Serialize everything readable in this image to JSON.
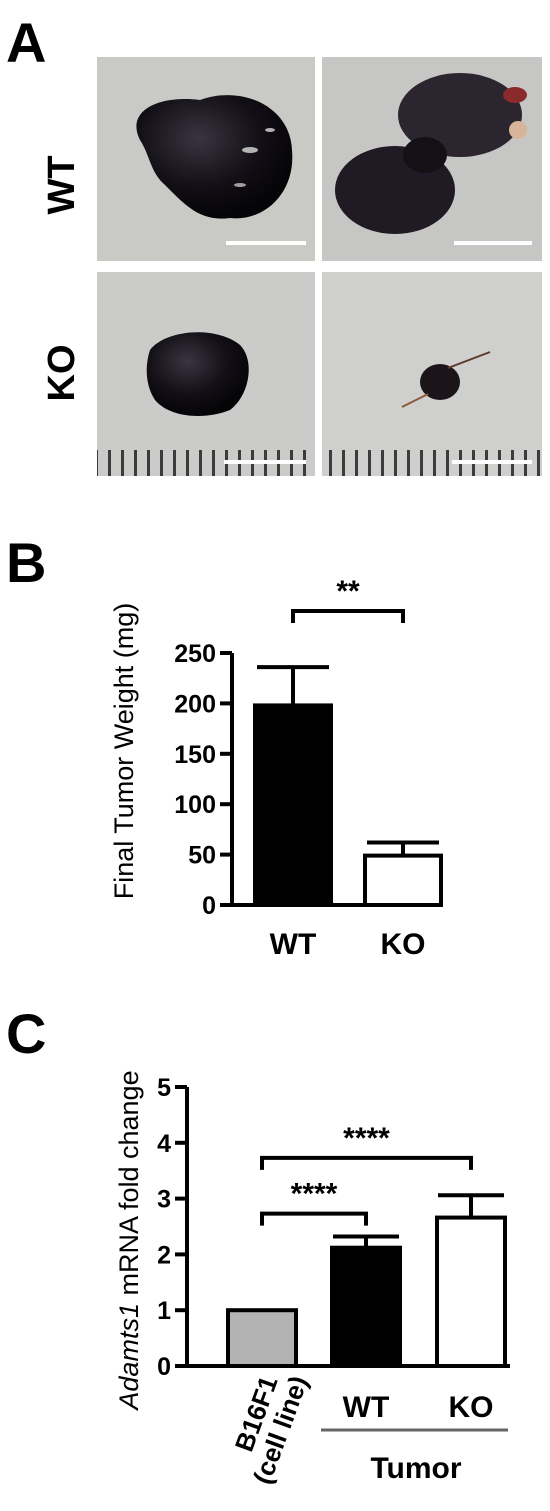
{
  "figure": {
    "panel_a": {
      "letter": "A",
      "rows": [
        "WT",
        "KO"
      ]
    },
    "panel_b": {
      "letter": "B"
    },
    "panel_c": {
      "letter": "C"
    }
  },
  "chart_data": [
    {
      "type": "bar",
      "panel": "B",
      "categories": [
        "WT",
        "KO"
      ],
      "values": [
        198,
        49
      ],
      "errors": [
        38,
        13
      ],
      "bar_colors": [
        "#000000",
        "#ffffff"
      ],
      "ylabel": "Final Tumor Weight (mg)",
      "ylim": [
        0,
        250
      ],
      "yticks": [
        0,
        50,
        100,
        150,
        200,
        250
      ],
      "significance": [
        {
          "from": 0,
          "to": 1,
          "label": "**"
        }
      ]
    },
    {
      "type": "bar",
      "panel": "C",
      "categories": [
        "B16F1",
        "WT",
        "KO"
      ],
      "category_sublabels": [
        "(cell line)",
        "",
        ""
      ],
      "group_label": "Tumor",
      "values": [
        1.0,
        2.12,
        2.66
      ],
      "errors": [
        0,
        0.2,
        0.4
      ],
      "bar_colors": [
        "#b3b3b3",
        "#000000",
        "#ffffff"
      ],
      "ylabel_italic": "Adamts1",
      "ylabel_rest": " mRNA fold change",
      "ylim": [
        0,
        5
      ],
      "yticks": [
        0,
        1,
        2,
        3,
        4,
        5
      ],
      "significance": [
        {
          "from": 0,
          "to": 1,
          "label": "****"
        },
        {
          "from": 0,
          "to": 2,
          "label": "****"
        }
      ]
    }
  ]
}
